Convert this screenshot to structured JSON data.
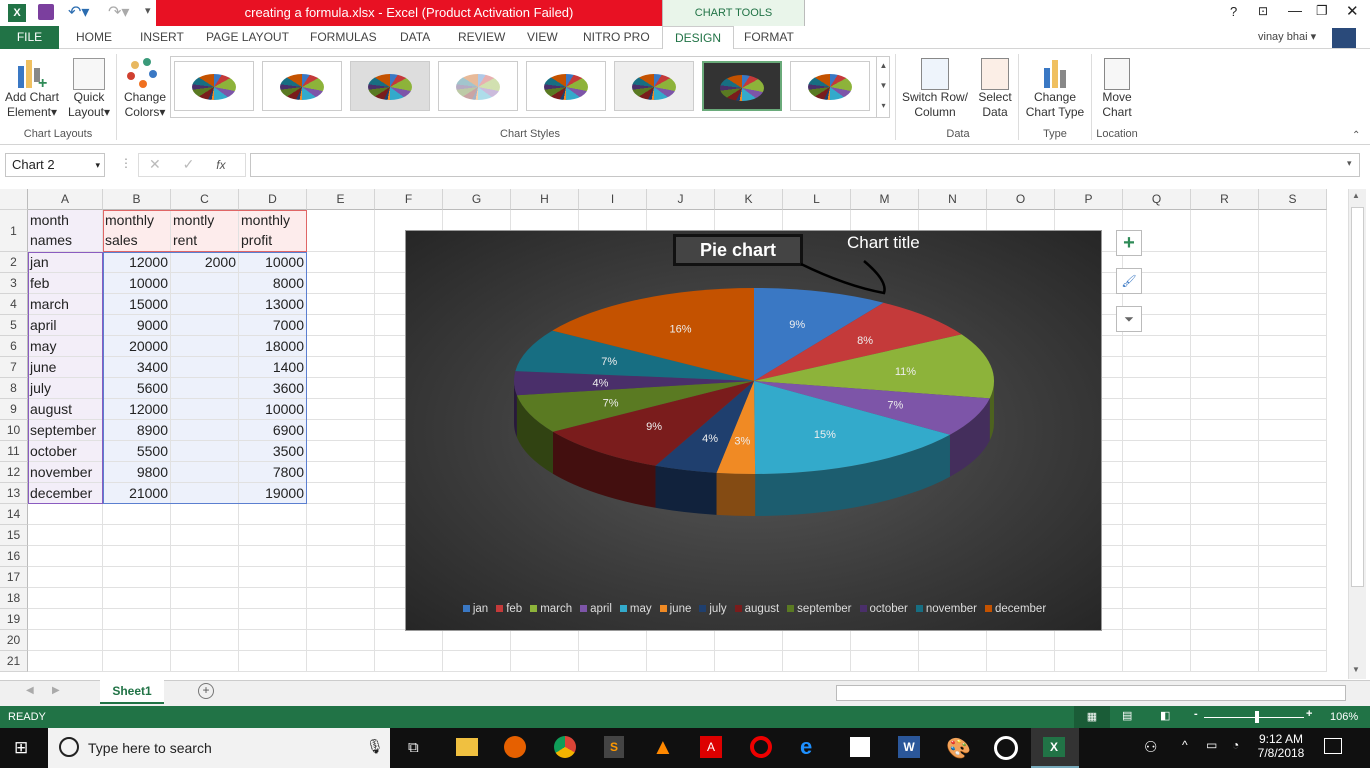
{
  "window": {
    "title": "creating a formula.xlsx -  Excel (Product Activation Failed)",
    "context_tab": "CHART TOOLS",
    "user": "vinay bhai",
    "help": "?"
  },
  "tabs": [
    "FILE",
    "HOME",
    "INSERT",
    "PAGE LAYOUT",
    "FORMULAS",
    "DATA",
    "REVIEW",
    "VIEW",
    "NITRO PRO",
    "DESIGN",
    "FORMAT"
  ],
  "active_tab": "DESIGN",
  "ribbon": {
    "add_chart_element": [
      "Add Chart",
      "Element"
    ],
    "quick_layout": [
      "Quick",
      "Layout"
    ],
    "change_colors": [
      "Change",
      "Colors"
    ],
    "group_chart_layouts": "Chart Layouts",
    "group_chart_styles": "Chart Styles",
    "switch_row_column": [
      "Switch Row/",
      "Column"
    ],
    "select_data": [
      "Select",
      "Data"
    ],
    "group_data": "Data",
    "change_chart_type": [
      "Change",
      "Chart Type"
    ],
    "group_type": "Type",
    "move_chart": [
      "Move",
      "Chart"
    ],
    "group_location": "Location",
    "selected_style_index": 6
  },
  "formula_bar": {
    "name_box": "Chart 2",
    "fx": "fx",
    "value": ""
  },
  "columns": [
    "A",
    "B",
    "C",
    "D",
    "E",
    "F",
    "G",
    "H",
    "I",
    "J",
    "K",
    "L",
    "M",
    "N",
    "O",
    "P",
    "Q",
    "R",
    "S"
  ],
  "row_numbers": [
    "1",
    "2",
    "3",
    "4",
    "5",
    "6",
    "7",
    "8",
    "9",
    "10",
    "11",
    "12",
    "13",
    "14",
    "15",
    "16",
    "17",
    "18",
    "19",
    "20",
    "21"
  ],
  "table": {
    "headers": [
      [
        "month",
        "names"
      ],
      [
        "monthly",
        "sales"
      ],
      [
        "montly",
        "rent"
      ],
      [
        "monthly",
        "profit"
      ]
    ],
    "rows": [
      [
        "jan",
        "12000",
        "2000",
        "10000"
      ],
      [
        "feb",
        "10000",
        "",
        "8000"
      ],
      [
        "march",
        "15000",
        "",
        "13000"
      ],
      [
        "april",
        "9000",
        "",
        "7000"
      ],
      [
        "may",
        "20000",
        "",
        "18000"
      ],
      [
        "june",
        "3400",
        "",
        "1400"
      ],
      [
        "july",
        "5600",
        "",
        "3600"
      ],
      [
        "august",
        "12000",
        "",
        "10000"
      ],
      [
        "september",
        "8900",
        "",
        "6900"
      ],
      [
        "october",
        "5500",
        "",
        "3500"
      ],
      [
        "november",
        "9800",
        "",
        "7800"
      ],
      [
        "december",
        "21000",
        "",
        "19000"
      ]
    ]
  },
  "chart_data": {
    "type": "pie",
    "style": "3d",
    "title": "Pie chart",
    "annotation": "Chart title",
    "categories": [
      "jan",
      "feb",
      "march",
      "april",
      "may",
      "june",
      "july",
      "august",
      "september",
      "october",
      "november",
      "december"
    ],
    "values": [
      12000,
      10000,
      15000,
      9000,
      20000,
      3400,
      5600,
      12000,
      8900,
      5500,
      9800,
      21000
    ],
    "data_labels": [
      "9%",
      "8%",
      "11%",
      "7%",
      "15%",
      "3%",
      "4%",
      "9%",
      "7%",
      "4%",
      "7%",
      "16%"
    ],
    "colors": [
      "#3a78c4",
      "#c43a3a",
      "#8db33a",
      "#7d55a8",
      "#33aacb",
      "#f08a24",
      "#1f3f6e",
      "#7a1c1c",
      "#5a7a22",
      "#4a2f6a",
      "#176e82",
      "#c45200"
    ],
    "legend": "bottom"
  },
  "sheets": [
    "Sheet1"
  ],
  "status": {
    "ready": "READY",
    "zoom": "106%",
    "zoom_level": 0.53
  },
  "taskbar": {
    "search_placeholder": "Type here to search",
    "time": "9:12 AM",
    "date": "7/8/2018"
  }
}
